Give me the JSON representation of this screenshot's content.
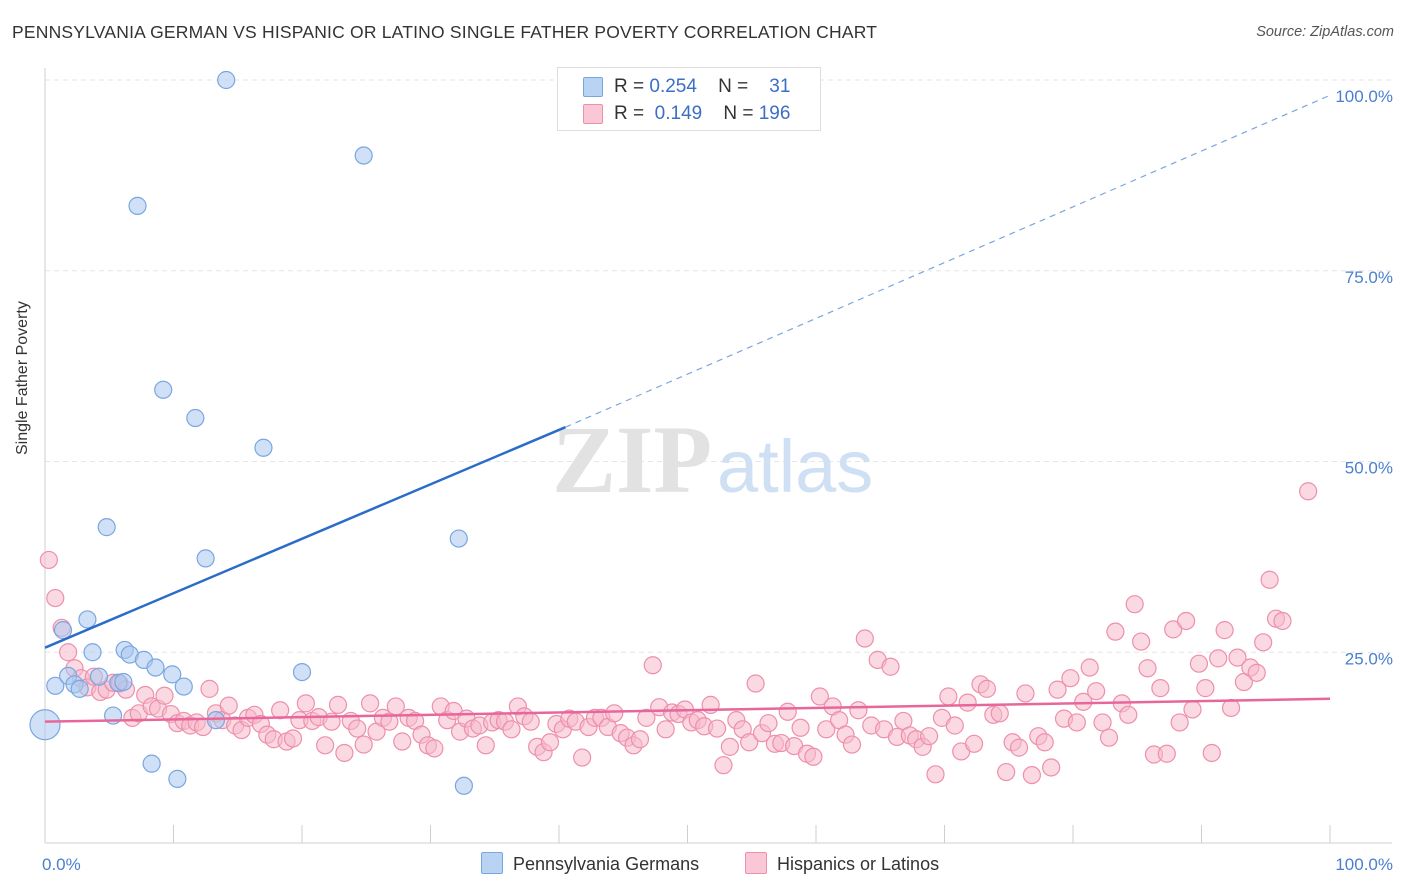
{
  "title": "PENNSYLVANIA GERMAN VS HISPANIC OR LATINO SINGLE FATHER POVERTY CORRELATION CHART",
  "source": "Source: ZipAtlas.com",
  "watermark": {
    "zip": "ZIP",
    "atlas": "atlas"
  },
  "legend": {
    "rows": [
      {
        "r_label": "R =",
        "r_value": "0.254",
        "n_label": "N =",
        "n_value": "31"
      },
      {
        "r_label": "R =",
        "r_value": "0.149",
        "n_label": "N =",
        "n_value": "196"
      }
    ]
  },
  "bottom_legend": {
    "series_a": "Pennsylvania Germans",
    "series_b": "Hispanics or Latinos"
  },
  "colors": {
    "blue_fill": "#a9c8f0",
    "blue_stroke": "#7aa6e0",
    "blue_line": "#2a6cc8",
    "pink_fill": "#f6b9cc",
    "pink_stroke": "#ee8fab",
    "pink_line": "#e8679a",
    "axis_text": "#4a7fcf",
    "grid": "#e6e6e6"
  },
  "chart_data": {
    "type": "scatter",
    "xlabel": "",
    "ylabel": "Single Father Poverty",
    "xlim": [
      0,
      100
    ],
    "ylim": [
      0,
      100
    ],
    "x_tick_labels": [
      "0.0%",
      "100.0%"
    ],
    "y_tick_labels": [
      "25.0%",
      "50.0%",
      "75.0%",
      "100.0%"
    ],
    "y_ticks": [
      25,
      50,
      75,
      100
    ],
    "grid": true,
    "series": [
      {
        "name": "Pennsylvania Germans",
        "color": "#a9c8f0",
        "trend": {
          "x": [
            0,
            40.5
          ],
          "y": [
            25.6,
            54.5
          ]
        },
        "trend_extension": {
          "x": [
            40.5,
            100
          ],
          "y": [
            54.5,
            98.0
          ]
        },
        "points": [
          {
            "x": 0.0,
            "y": 15.5,
            "big": true
          },
          {
            "x": 0.8,
            "y": 20.6
          },
          {
            "x": 1.4,
            "y": 27.9
          },
          {
            "x": 1.8,
            "y": 21.9
          },
          {
            "x": 2.3,
            "y": 20.8
          },
          {
            "x": 2.7,
            "y": 20.2
          },
          {
            "x": 3.3,
            "y": 29.3
          },
          {
            "x": 3.7,
            "y": 25.0
          },
          {
            "x": 4.2,
            "y": 21.8
          },
          {
            "x": 4.8,
            "y": 41.4
          },
          {
            "x": 5.3,
            "y": 16.7
          },
          {
            "x": 5.7,
            "y": 21.0
          },
          {
            "x": 6.1,
            "y": 21.1
          },
          {
            "x": 6.2,
            "y": 25.3
          },
          {
            "x": 6.6,
            "y": 24.7
          },
          {
            "x": 7.2,
            "y": 83.5
          },
          {
            "x": 7.7,
            "y": 24.0
          },
          {
            "x": 8.3,
            "y": 10.4
          },
          {
            "x": 8.6,
            "y": 23.0
          },
          {
            "x": 9.2,
            "y": 59.4
          },
          {
            "x": 9.9,
            "y": 22.1
          },
          {
            "x": 10.3,
            "y": 8.4
          },
          {
            "x": 10.8,
            "y": 20.5
          },
          {
            "x": 11.7,
            "y": 55.7
          },
          {
            "x": 12.5,
            "y": 37.3
          },
          {
            "x": 13.3,
            "y": 16.1
          },
          {
            "x": 14.1,
            "y": 100.0
          },
          {
            "x": 17.0,
            "y": 51.8
          },
          {
            "x": 20.0,
            "y": 22.4
          },
          {
            "x": 24.8,
            "y": 90.1
          },
          {
            "x": 32.2,
            "y": 39.9
          },
          {
            "x": 32.6,
            "y": 7.5
          }
        ]
      },
      {
        "name": "Hispanics or Latinos",
        "color": "#f6b9cc",
        "trend": {
          "x": [
            0,
            100
          ],
          "y": [
            15.9,
            18.9
          ]
        },
        "points": [
          {
            "x": 0.3,
            "y": 37.1
          },
          {
            "x": 0.8,
            "y": 32.1
          },
          {
            "x": 1.3,
            "y": 28.2
          },
          {
            "x": 1.8,
            "y": 25.0
          },
          {
            "x": 2.3,
            "y": 22.9
          },
          {
            "x": 2.8,
            "y": 21.6
          },
          {
            "x": 3.3,
            "y": 20.4
          },
          {
            "x": 3.8,
            "y": 21.8
          },
          {
            "x": 4.3,
            "y": 19.8
          },
          {
            "x": 4.8,
            "y": 20.1
          },
          {
            "x": 5.3,
            "y": 21.0
          },
          {
            "x": 5.8,
            "y": 20.9
          },
          {
            "x": 6.3,
            "y": 20.1
          },
          {
            "x": 6.8,
            "y": 16.4
          },
          {
            "x": 7.3,
            "y": 17.0
          },
          {
            "x": 7.8,
            "y": 19.4
          },
          {
            "x": 8.3,
            "y": 17.9
          },
          {
            "x": 8.8,
            "y": 17.6
          },
          {
            "x": 9.3,
            "y": 19.3
          },
          {
            "x": 9.8,
            "y": 16.9
          },
          {
            "x": 10.3,
            "y": 15.7
          },
          {
            "x": 10.8,
            "y": 16.0
          },
          {
            "x": 11.3,
            "y": 15.4
          },
          {
            "x": 11.8,
            "y": 15.8
          },
          {
            "x": 12.3,
            "y": 15.2
          },
          {
            "x": 12.8,
            "y": 20.2
          },
          {
            "x": 13.3,
            "y": 17.0
          },
          {
            "x": 13.8,
            "y": 16.1
          },
          {
            "x": 14.3,
            "y": 18.0
          },
          {
            "x": 14.8,
            "y": 15.4
          },
          {
            "x": 15.3,
            "y": 14.8
          },
          {
            "x": 15.8,
            "y": 16.4
          },
          {
            "x": 16.3,
            "y": 16.8
          },
          {
            "x": 16.8,
            "y": 15.6
          },
          {
            "x": 17.3,
            "y": 14.2
          },
          {
            "x": 17.8,
            "y": 13.6
          },
          {
            "x": 18.3,
            "y": 17.4
          },
          {
            "x": 18.8,
            "y": 13.3
          },
          {
            "x": 19.3,
            "y": 13.7
          },
          {
            "x": 19.8,
            "y": 16.1
          },
          {
            "x": 20.3,
            "y": 18.3
          },
          {
            "x": 20.8,
            "y": 16.0
          },
          {
            "x": 21.3,
            "y": 16.5
          },
          {
            "x": 21.8,
            "y": 12.8
          },
          {
            "x": 22.3,
            "y": 15.9
          },
          {
            "x": 22.8,
            "y": 18.1
          },
          {
            "x": 23.3,
            "y": 11.8
          },
          {
            "x": 23.8,
            "y": 16.0
          },
          {
            "x": 24.3,
            "y": 15.0
          },
          {
            "x": 24.8,
            "y": 12.9
          },
          {
            "x": 25.3,
            "y": 18.3
          },
          {
            "x": 25.8,
            "y": 14.6
          },
          {
            "x": 26.3,
            "y": 16.4
          },
          {
            "x": 26.8,
            "y": 15.9
          },
          {
            "x": 27.3,
            "y": 17.9
          },
          {
            "x": 27.8,
            "y": 13.3
          },
          {
            "x": 28.3,
            "y": 16.4
          },
          {
            "x": 28.8,
            "y": 16.0
          },
          {
            "x": 29.3,
            "y": 14.2
          },
          {
            "x": 29.8,
            "y": 12.8
          },
          {
            "x": 30.3,
            "y": 12.4
          },
          {
            "x": 30.8,
            "y": 17.9
          },
          {
            "x": 31.3,
            "y": 16.1
          },
          {
            "x": 31.8,
            "y": 17.3
          },
          {
            "x": 32.3,
            "y": 14.6
          },
          {
            "x": 32.8,
            "y": 16.3
          },
          {
            "x": 33.3,
            "y": 15.0
          },
          {
            "x": 33.8,
            "y": 15.4
          },
          {
            "x": 34.3,
            "y": 12.8
          },
          {
            "x": 34.8,
            "y": 15.8
          },
          {
            "x": 35.3,
            "y": 16.1
          },
          {
            "x": 35.8,
            "y": 15.9
          },
          {
            "x": 36.3,
            "y": 14.9
          },
          {
            "x": 36.8,
            "y": 17.9
          },
          {
            "x": 37.3,
            "y": 16.6
          },
          {
            "x": 37.8,
            "y": 15.9
          },
          {
            "x": 38.3,
            "y": 12.6
          },
          {
            "x": 38.8,
            "y": 11.9
          },
          {
            "x": 39.3,
            "y": 13.2
          },
          {
            "x": 39.8,
            "y": 15.6
          },
          {
            "x": 40.3,
            "y": 14.9
          },
          {
            "x": 40.8,
            "y": 16.3
          },
          {
            "x": 41.3,
            "y": 15.9
          },
          {
            "x": 41.8,
            "y": 11.2
          },
          {
            "x": 42.3,
            "y": 15.2
          },
          {
            "x": 42.8,
            "y": 16.4
          },
          {
            "x": 43.3,
            "y": 16.4
          },
          {
            "x": 43.8,
            "y": 15.2
          },
          {
            "x": 44.3,
            "y": 17.0
          },
          {
            "x": 44.8,
            "y": 14.4
          },
          {
            "x": 45.3,
            "y": 13.8
          },
          {
            "x": 45.8,
            "y": 12.8
          },
          {
            "x": 46.3,
            "y": 13.6
          },
          {
            "x": 46.8,
            "y": 16.4
          },
          {
            "x": 47.3,
            "y": 23.3
          },
          {
            "x": 47.8,
            "y": 17.8
          },
          {
            "x": 48.3,
            "y": 14.9
          },
          {
            "x": 48.8,
            "y": 17.1
          },
          {
            "x": 49.3,
            "y": 16.9
          },
          {
            "x": 49.8,
            "y": 17.5
          },
          {
            "x": 50.3,
            "y": 15.8
          },
          {
            "x": 50.8,
            "y": 16.1
          },
          {
            "x": 51.3,
            "y": 15.3
          },
          {
            "x": 51.8,
            "y": 18.1
          },
          {
            "x": 52.3,
            "y": 15.0
          },
          {
            "x": 52.8,
            "y": 10.2
          },
          {
            "x": 53.3,
            "y": 12.6
          },
          {
            "x": 53.8,
            "y": 16.1
          },
          {
            "x": 54.3,
            "y": 14.9
          },
          {
            "x": 54.8,
            "y": 13.2
          },
          {
            "x": 55.3,
            "y": 20.9
          },
          {
            "x": 55.8,
            "y": 14.4
          },
          {
            "x": 56.3,
            "y": 15.7
          },
          {
            "x": 56.8,
            "y": 13.0
          },
          {
            "x": 57.3,
            "y": 13.1
          },
          {
            "x": 57.8,
            "y": 17.2
          },
          {
            "x": 58.3,
            "y": 12.7
          },
          {
            "x": 58.8,
            "y": 15.1
          },
          {
            "x": 59.3,
            "y": 11.7
          },
          {
            "x": 59.8,
            "y": 11.3
          },
          {
            "x": 60.3,
            "y": 19.2
          },
          {
            "x": 60.8,
            "y": 14.9
          },
          {
            "x": 61.3,
            "y": 17.9
          },
          {
            "x": 61.8,
            "y": 16.1
          },
          {
            "x": 62.3,
            "y": 14.2
          },
          {
            "x": 62.8,
            "y": 12.9
          },
          {
            "x": 63.3,
            "y": 17.4
          },
          {
            "x": 63.8,
            "y": 26.8
          },
          {
            "x": 64.3,
            "y": 15.4
          },
          {
            "x": 64.8,
            "y": 24.0
          },
          {
            "x": 65.3,
            "y": 14.9
          },
          {
            "x": 65.8,
            "y": 23.1
          },
          {
            "x": 66.3,
            "y": 13.9
          },
          {
            "x": 66.8,
            "y": 16.0
          },
          {
            "x": 67.3,
            "y": 14.1
          },
          {
            "x": 67.8,
            "y": 13.6
          },
          {
            "x": 68.3,
            "y": 12.6
          },
          {
            "x": 68.8,
            "y": 14.0
          },
          {
            "x": 69.3,
            "y": 9.0
          },
          {
            "x": 69.8,
            "y": 16.4
          },
          {
            "x": 70.3,
            "y": 19.2
          },
          {
            "x": 70.8,
            "y": 15.4
          },
          {
            "x": 71.3,
            "y": 12.0
          },
          {
            "x": 71.8,
            "y": 18.4
          },
          {
            "x": 72.3,
            "y": 13.0
          },
          {
            "x": 72.8,
            "y": 20.8
          },
          {
            "x": 73.3,
            "y": 20.2
          },
          {
            "x": 73.8,
            "y": 16.8
          },
          {
            "x": 74.3,
            "y": 17.0
          },
          {
            "x": 74.8,
            "y": 9.3
          },
          {
            "x": 75.3,
            "y": 13.2
          },
          {
            "x": 75.8,
            "y": 12.5
          },
          {
            "x": 76.3,
            "y": 19.6
          },
          {
            "x": 76.8,
            "y": 8.9
          },
          {
            "x": 77.3,
            "y": 14.0
          },
          {
            "x": 77.8,
            "y": 13.2
          },
          {
            "x": 78.3,
            "y": 9.9
          },
          {
            "x": 78.8,
            "y": 20.1
          },
          {
            "x": 79.3,
            "y": 16.3
          },
          {
            "x": 79.8,
            "y": 21.6
          },
          {
            "x": 80.3,
            "y": 15.8
          },
          {
            "x": 80.8,
            "y": 18.5
          },
          {
            "x": 81.3,
            "y": 23.0
          },
          {
            "x": 81.8,
            "y": 19.9
          },
          {
            "x": 82.3,
            "y": 15.8
          },
          {
            "x": 82.8,
            "y": 13.8
          },
          {
            "x": 83.3,
            "y": 27.7
          },
          {
            "x": 83.8,
            "y": 18.3
          },
          {
            "x": 84.3,
            "y": 16.8
          },
          {
            "x": 84.8,
            "y": 31.3
          },
          {
            "x": 85.3,
            "y": 26.4
          },
          {
            "x": 85.8,
            "y": 22.9
          },
          {
            "x": 86.3,
            "y": 11.6
          },
          {
            "x": 86.8,
            "y": 20.3
          },
          {
            "x": 87.3,
            "y": 11.7
          },
          {
            "x": 87.8,
            "y": 28.0
          },
          {
            "x": 88.3,
            "y": 15.8
          },
          {
            "x": 88.8,
            "y": 29.1
          },
          {
            "x": 89.3,
            "y": 17.5
          },
          {
            "x": 89.8,
            "y": 23.5
          },
          {
            "x": 90.3,
            "y": 20.3
          },
          {
            "x": 90.8,
            "y": 11.8
          },
          {
            "x": 91.3,
            "y": 24.2
          },
          {
            "x": 91.8,
            "y": 27.9
          },
          {
            "x": 92.3,
            "y": 17.7
          },
          {
            "x": 92.8,
            "y": 24.3
          },
          {
            "x": 93.3,
            "y": 21.1
          },
          {
            "x": 93.8,
            "y": 23.0
          },
          {
            "x": 94.3,
            "y": 22.3
          },
          {
            "x": 94.8,
            "y": 26.3
          },
          {
            "x": 95.3,
            "y": 34.5
          },
          {
            "x": 95.8,
            "y": 29.4
          },
          {
            "x": 96.3,
            "y": 29.1
          },
          {
            "x": 98.3,
            "y": 46.1
          }
        ]
      }
    ]
  }
}
